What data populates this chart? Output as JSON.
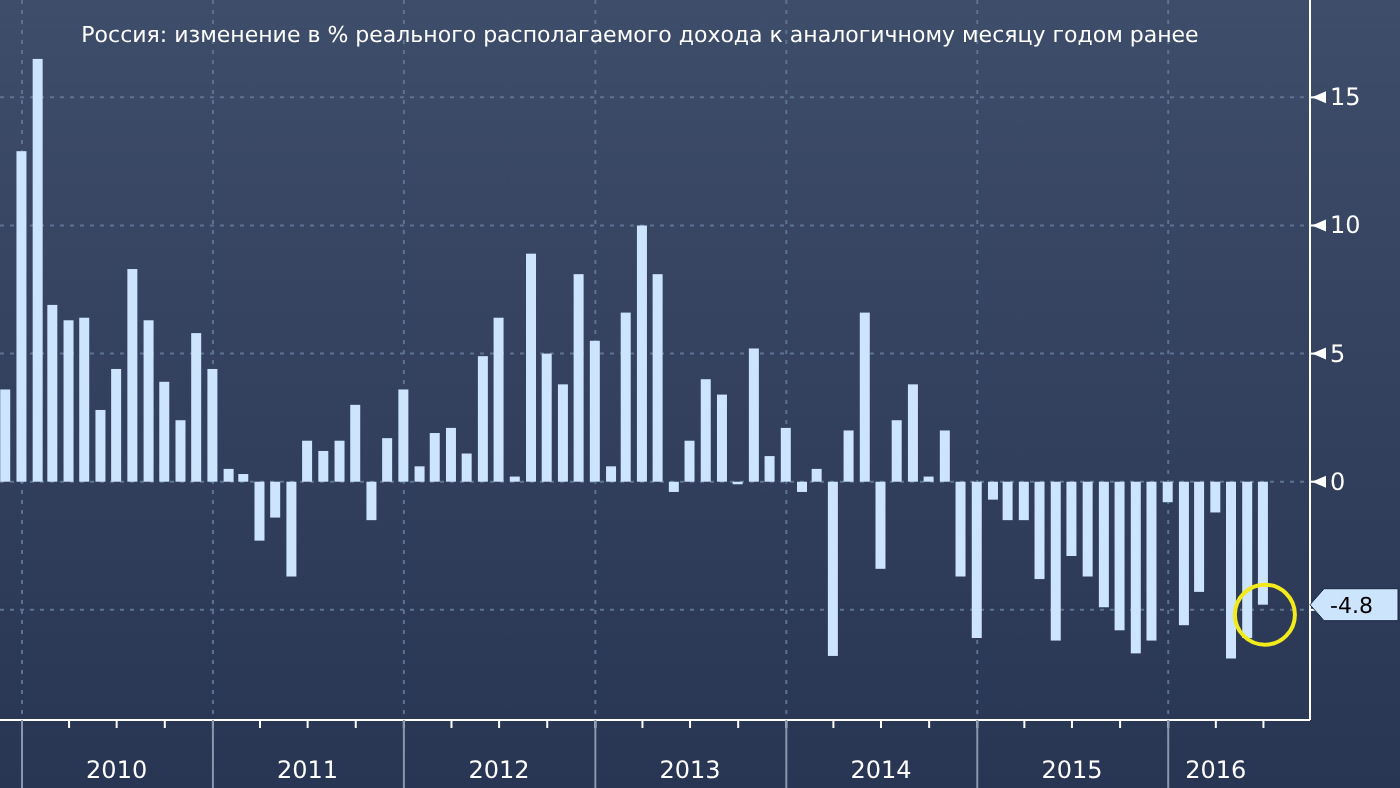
{
  "chart_data": {
    "type": "bar",
    "title": "Россия: изменение в % реального располагаемого дохода к аналогичному месяцу годом ранее",
    "x": [
      "2009-11-30",
      "2009-12-31",
      "2010-01-31",
      "2010-02-28",
      "2010-03-31",
      "2010-04-30",
      "2010-05-31",
      "2010-06-30",
      "2010-07-31",
      "2010-08-31",
      "2010-09-30",
      "2010-10-31",
      "2010-11-30",
      "2010-12-31",
      "2011-01-31",
      "2011-02-28",
      "2011-03-31",
      "2011-04-30",
      "2011-05-31",
      "2011-06-30",
      "2011-07-31",
      "2011-08-31",
      "2011-09-30",
      "2011-10-31",
      "2011-11-30",
      "2011-12-31",
      "2012-01-31",
      "2012-02-29",
      "2012-03-31",
      "2012-04-30",
      "2012-05-31",
      "2012-06-30",
      "2012-07-31",
      "2012-08-31",
      "2012-09-30",
      "2012-10-31",
      "2012-11-30",
      "2012-12-31",
      "2013-01-31",
      "2013-02-28",
      "2013-03-31",
      "2013-04-30",
      "2013-05-31",
      "2013-06-30",
      "2013-07-31",
      "2013-08-31",
      "2013-09-30",
      "2013-10-31",
      "2013-11-30",
      "2013-12-31",
      "2014-01-31",
      "2014-02-28",
      "2014-03-31",
      "2014-04-30",
      "2014-05-31",
      "2014-06-30",
      "2014-07-31",
      "2014-08-31",
      "2014-09-30",
      "2014-10-31",
      "2014-11-30",
      "2014-12-31",
      "2015-01-31",
      "2015-02-28",
      "2015-03-31",
      "2015-04-30",
      "2015-05-31",
      "2015-06-30",
      "2015-07-31",
      "2015-08-31",
      "2015-09-30",
      "2015-10-31",
      "2015-11-30",
      "2015-12-31",
      "2016-01-31",
      "2016-02-29",
      "2016-03-31",
      "2016-04-30",
      "2016-05-31",
      "2016-06-30"
    ],
    "values": [
      3.6,
      12.9,
      16.5,
      6.9,
      6.3,
      6.4,
      2.8,
      4.4,
      8.3,
      6.3,
      3.9,
      2.4,
      5.8,
      4.4,
      0.5,
      0.3,
      -2.3,
      -1.4,
      -3.7,
      1.6,
      1.2,
      1.6,
      3.0,
      -1.5,
      1.7,
      3.6,
      0.6,
      1.9,
      2.1,
      1.1,
      4.9,
      6.4,
      0.2,
      8.9,
      5.0,
      3.8,
      8.1,
      5.5,
      0.6,
      6.6,
      10.0,
      8.1,
      -0.4,
      1.6,
      4.0,
      3.4,
      -0.1,
      5.2,
      1.0,
      2.1,
      -0.4,
      0.5,
      -6.8,
      2.0,
      6.6,
      -3.4,
      2.4,
      3.8,
      0.2,
      2.0,
      -3.7,
      -6.1,
      -0.7,
      -1.5,
      -1.5,
      -3.8,
      -6.2,
      -2.9,
      -3.7,
      -4.9,
      -5.8,
      -6.7,
      -6.2,
      -0.8,
      -5.6,
      -4.3,
      -1.2,
      -6.9,
      -6.1,
      -4.8
    ],
    "color": "#cce4fc",
    "xlim": [
      "2009-11-20",
      "2016-09-28"
    ],
    "xticks": [
      {
        "value": "2010-01-01",
        "label": null
      },
      {
        "value": "2010-07-01",
        "label": "2010"
      },
      {
        "value": "2011-01-01",
        "label": null
      },
      {
        "value": "2011-07-01",
        "label": "2011"
      },
      {
        "value": "2012-01-01",
        "label": null
      },
      {
        "value": "2012-07-01",
        "label": "2012"
      },
      {
        "value": "2013-01-01",
        "label": null
      },
      {
        "value": "2013-07-01",
        "label": "2013"
      },
      {
        "value": "2014-01-01",
        "label": null
      },
      {
        "value": "2014-07-01",
        "label": "2014"
      },
      {
        "value": "2015-01-01",
        "label": null
      },
      {
        "value": "2015-07-01",
        "label": "2015"
      },
      {
        "value": "2016-01-01",
        "label": null
      },
      {
        "value": "2016-04-01",
        "label": "2016"
      }
    ],
    "ylim": [
      -9.3,
      18.8
    ],
    "yticks": [
      {
        "value": -5,
        "label": null
      },
      0,
      5,
      10,
      15
    ],
    "grid": true,
    "annotations": [
      {
        "text": "-4.8",
        "y": -4.8
      }
    ]
  }
}
